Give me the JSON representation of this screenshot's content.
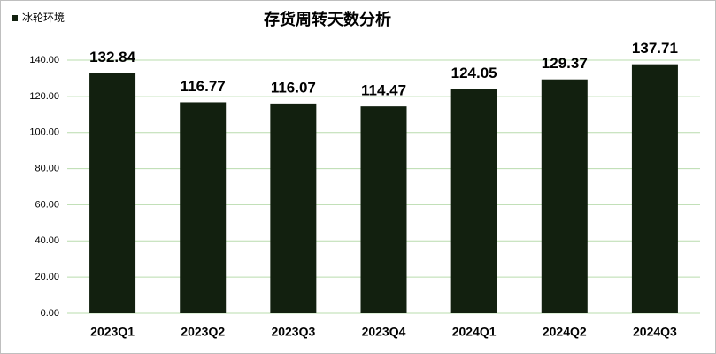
{
  "chart_data": {
    "type": "bar",
    "title": "存货周转天数分析",
    "categories": [
      "2023Q1",
      "2023Q2",
      "2023Q3",
      "2023Q4",
      "2024Q1",
      "2024Q2",
      "2024Q3"
    ],
    "series": [
      {
        "name": "冰轮环境",
        "color": "#12200f",
        "values": [
          132.84,
          116.77,
          116.07,
          114.47,
          124.05,
          129.37,
          137.71
        ]
      }
    ],
    "ylim": [
      0,
      140
    ],
    "yticks": [
      {
        "value": 0,
        "label": "0.00"
      },
      {
        "value": 20,
        "label": "20.00"
      },
      {
        "value": 40,
        "label": "40.00"
      },
      {
        "value": 60,
        "label": "60.00"
      },
      {
        "value": 80,
        "label": "80.00"
      },
      {
        "value": 100,
        "label": "100.00"
      },
      {
        "value": 120,
        "label": "120.00"
      },
      {
        "value": 140,
        "label": "140.00"
      }
    ],
    "grid": true,
    "legend": "top-left"
  }
}
